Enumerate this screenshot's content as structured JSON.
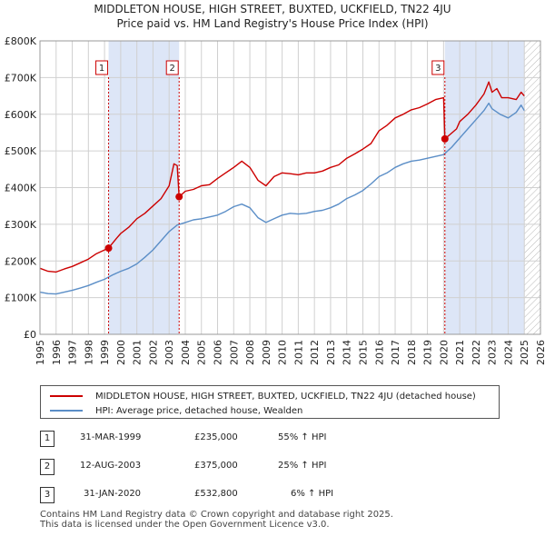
{
  "header": {
    "title_line1": "MIDDLETON HOUSE, HIGH STREET, BUXTED, UCKFIELD, TN22 4JU",
    "title_line2": "Price paid vs. HM Land Registry's House Price Index (HPI)"
  },
  "chart_data": {
    "type": "line",
    "title": "MIDDLETON HOUSE, HIGH STREET, BUXTED, UCKFIELD, TN22 4JU — Price paid vs. HM Land Registry's House Price Index (HPI)",
    "xlabel": "",
    "ylabel": "",
    "xlim": [
      1995,
      2026
    ],
    "ylim": [
      0,
      800000
    ],
    "grid": true,
    "y_ticks": [
      0,
      100000,
      200000,
      300000,
      400000,
      500000,
      600000,
      700000,
      800000
    ],
    "y_tick_labels": [
      "£0",
      "£100K",
      "£200K",
      "£300K",
      "£400K",
      "£500K",
      "£600K",
      "£700K",
      "£800K"
    ],
    "x_ticks": [
      1995,
      1996,
      1997,
      1998,
      1999,
      2000,
      2001,
      2002,
      2003,
      2004,
      2005,
      2006,
      2007,
      2008,
      2009,
      2010,
      2011,
      2012,
      2013,
      2014,
      2015,
      2016,
      2017,
      2018,
      2019,
      2020,
      2021,
      2022,
      2023,
      2024,
      2025,
      2026
    ],
    "x_tick_labels": [
      "1995",
      "1996",
      "1997",
      "1998",
      "1999",
      "2000",
      "2001",
      "2002",
      "2003",
      "2004",
      "2005",
      "2006",
      "2007",
      "2008",
      "2009",
      "2010",
      "2011",
      "2012",
      "2013",
      "2014",
      "2015",
      "2016",
      "2017",
      "2018",
      "2019",
      "2020",
      "2021",
      "2022",
      "2023",
      "2024",
      "2025",
      "2026"
    ],
    "shaded_periods": [
      {
        "from": 1999.25,
        "to": 2003.62,
        "color": "#dde6f7"
      },
      {
        "from": 2020.08,
        "to": 2025.0,
        "color": "#dde6f7"
      }
    ],
    "hatched_after": 2025.0,
    "series": [
      {
        "name": "MIDDLETON HOUSE, HIGH STREET, BUXTED, UCKFIELD, TN22 4JU (detached house)",
        "color": "#cc0000",
        "x": [
          1995.0,
          1995.5,
          1996.0,
          1996.5,
          1997.0,
          1997.5,
          1998.0,
          1998.5,
          1999.0,
          1999.25,
          1999.75,
          2000.0,
          2000.5,
          2001.0,
          2001.5,
          2002.0,
          2002.5,
          2003.0,
          2003.3,
          2003.5,
          2003.62,
          2004.0,
          2004.5,
          2005.0,
          2005.5,
          2006.0,
          2006.5,
          2007.0,
          2007.5,
          2008.0,
          2008.5,
          2009.0,
          2009.5,
          2010.0,
          2010.5,
          2011.0,
          2011.5,
          2012.0,
          2012.5,
          2013.0,
          2013.5,
          2014.0,
          2014.5,
          2015.0,
          2015.5,
          2016.0,
          2016.5,
          2017.0,
          2017.5,
          2018.0,
          2018.5,
          2019.0,
          2019.5,
          2020.0,
          2020.08,
          2020.4,
          2020.8,
          2021.0,
          2021.5,
          2022.0,
          2022.5,
          2022.8,
          2023.0,
          2023.3,
          2023.6,
          2024.0,
          2024.5,
          2024.8,
          2025.0
        ],
        "values": [
          180000,
          172000,
          170000,
          178000,
          185000,
          195000,
          205000,
          220000,
          230000,
          235000,
          262000,
          275000,
          292000,
          315000,
          330000,
          350000,
          370000,
          405000,
          465000,
          460000,
          375000,
          390000,
          395000,
          405000,
          408000,
          425000,
          440000,
          455000,
          472000,
          455000,
          420000,
          405000,
          430000,
          440000,
          438000,
          435000,
          440000,
          440000,
          445000,
          455000,
          462000,
          480000,
          492000,
          505000,
          520000,
          555000,
          570000,
          590000,
          600000,
          612000,
          618000,
          628000,
          640000,
          645000,
          532800,
          545000,
          560000,
          580000,
          600000,
          625000,
          655000,
          688000,
          660000,
          670000,
          645000,
          645000,
          640000,
          660000,
          650000
        ]
      },
      {
        "name": "HPI: Average price, detached house, Wealden",
        "color": "#5b8ec7",
        "x": [
          1995.0,
          1995.5,
          1996.0,
          1996.5,
          1997.0,
          1997.5,
          1998.0,
          1998.5,
          1999.0,
          1999.5,
          2000.0,
          2000.5,
          2001.0,
          2001.5,
          2002.0,
          2002.5,
          2003.0,
          2003.5,
          2004.0,
          2004.5,
          2005.0,
          2005.5,
          2006.0,
          2006.5,
          2007.0,
          2007.5,
          2008.0,
          2008.5,
          2009.0,
          2009.5,
          2010.0,
          2010.5,
          2011.0,
          2011.5,
          2012.0,
          2012.5,
          2013.0,
          2013.5,
          2014.0,
          2014.5,
          2015.0,
          2015.5,
          2016.0,
          2016.5,
          2017.0,
          2017.5,
          2018.0,
          2018.5,
          2019.0,
          2019.5,
          2020.0,
          2020.5,
          2021.0,
          2021.5,
          2022.0,
          2022.5,
          2022.8,
          2023.0,
          2023.5,
          2024.0,
          2024.5,
          2024.8,
          2025.0
        ],
        "values": [
          115000,
          111000,
          110000,
          115000,
          120000,
          126000,
          133000,
          142000,
          150000,
          162000,
          172000,
          180000,
          192000,
          210000,
          230000,
          255000,
          280000,
          298000,
          305000,
          312000,
          315000,
          320000,
          325000,
          335000,
          348000,
          355000,
          345000,
          318000,
          305000,
          315000,
          325000,
          330000,
          328000,
          330000,
          335000,
          338000,
          345000,
          355000,
          370000,
          380000,
          392000,
          410000,
          430000,
          440000,
          455000,
          465000,
          472000,
          475000,
          480000,
          485000,
          490000,
          510000,
          535000,
          560000,
          585000,
          610000,
          630000,
          615000,
          600000,
          590000,
          605000,
          625000,
          610000
        ]
      }
    ],
    "sale_markers": [
      {
        "label": "1",
        "x": 1999.25,
        "value": 235000
      },
      {
        "label": "2",
        "x": 2003.62,
        "value": 375000
      },
      {
        "label": "3",
        "x": 2020.08,
        "value": 532800
      }
    ]
  },
  "legend": {
    "property_label": "MIDDLETON HOUSE, HIGH STREET, BUXTED, UCKFIELD, TN22 4JU (detached house)",
    "hpi_label": "HPI: Average price, detached house, Wealden",
    "property_color": "#cc0000",
    "hpi_color": "#5b8ec7"
  },
  "sales": [
    {
      "num": "1",
      "date": "31-MAR-1999",
      "price": "£235,000",
      "hpi": "55% ↑ HPI"
    },
    {
      "num": "2",
      "date": "12-AUG-2003",
      "price": "£375,000",
      "hpi": "25% ↑ HPI"
    },
    {
      "num": "3",
      "date": "31-JAN-2020",
      "price": "£532,800",
      "hpi": "6% ↑ HPI"
    }
  ],
  "footer": {
    "line1": "Contains HM Land Registry data © Crown copyright and database right 2025.",
    "line2": "This data is licensed under the Open Government Licence v3.0."
  }
}
